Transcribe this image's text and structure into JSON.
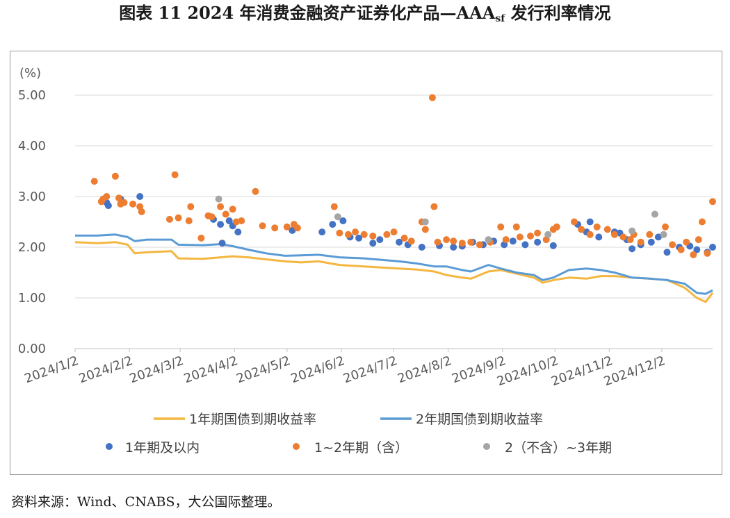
{
  "title": {
    "main": "图表 11  2024 年消费金融资产证券化产品—AAA",
    "subscript": "sf",
    "suffix": " 发行利率情况"
  },
  "source_note": "资料来源：Wind、CNABS，大公国际整理。",
  "colors": {
    "orange": "#ED7D31",
    "blue": "#4472C4",
    "gray": "#A5A5A5",
    "line_1y": "#F4B63F",
    "line_2y": "#5B9BD5",
    "grid": "#D9D9D9"
  },
  "chart_data": {
    "type": "scatter",
    "ylabel": "(%)",
    "ylim": [
      0,
      5.0
    ],
    "yticks": [
      "0.00",
      "1.00",
      "2.00",
      "3.00",
      "4.00",
      "5.00"
    ],
    "xlim": [
      "2024-01-02",
      "2024-12-31"
    ],
    "xticks": [
      "2024/1/2",
      "2024/2/2",
      "2024/3/2",
      "2024/4/2",
      "2024/5/2",
      "2024/6/2",
      "2024/7/2",
      "2024/8/2",
      "2024/9/2",
      "2024/10/2",
      "2024/11/2",
      "2024/12/2"
    ],
    "grid": true,
    "legend_position": "bottom",
    "lines": [
      {
        "name": "1年期国债到期收益率",
        "color": "#F4B63F",
        "points": [
          [
            "2024-01-02",
            2.1
          ],
          [
            "2024-01-15",
            2.08
          ],
          [
            "2024-01-25",
            2.1
          ],
          [
            "2024-02-01",
            2.05
          ],
          [
            "2024-02-05",
            1.88
          ],
          [
            "2024-02-12",
            1.9
          ],
          [
            "2024-02-26",
            1.92
          ],
          [
            "2024-03-01",
            1.78
          ],
          [
            "2024-03-15",
            1.77
          ],
          [
            "2024-03-25",
            1.8
          ],
          [
            "2024-04-01",
            1.82
          ],
          [
            "2024-04-10",
            1.8
          ],
          [
            "2024-04-20",
            1.76
          ],
          [
            "2024-05-01",
            1.72
          ],
          [
            "2024-05-10",
            1.7
          ],
          [
            "2024-05-20",
            1.72
          ],
          [
            "2024-06-01",
            1.65
          ],
          [
            "2024-06-15",
            1.62
          ],
          [
            "2024-06-25",
            1.6
          ],
          [
            "2024-07-05",
            1.58
          ],
          [
            "2024-07-15",
            1.56
          ],
          [
            "2024-07-25",
            1.52
          ],
          [
            "2024-08-01",
            1.45
          ],
          [
            "2024-08-10",
            1.4
          ],
          [
            "2024-08-15",
            1.38
          ],
          [
            "2024-08-25",
            1.52
          ],
          [
            "2024-09-01",
            1.55
          ],
          [
            "2024-09-10",
            1.48
          ],
          [
            "2024-09-20",
            1.4
          ],
          [
            "2024-09-25",
            1.3
          ],
          [
            "2024-10-01",
            1.35
          ],
          [
            "2024-10-10",
            1.4
          ],
          [
            "2024-10-20",
            1.38
          ],
          [
            "2024-10-28",
            1.43
          ],
          [
            "2024-11-05",
            1.43
          ],
          [
            "2024-11-15",
            1.4
          ],
          [
            "2024-11-25",
            1.38
          ],
          [
            "2024-12-05",
            1.35
          ],
          [
            "2024-12-15",
            1.2
          ],
          [
            "2024-12-22",
            1.0
          ],
          [
            "2024-12-27",
            0.92
          ],
          [
            "2024-12-31",
            1.1
          ]
        ]
      },
      {
        "name": "2年期国债到期收益率",
        "color": "#5B9BD5",
        "points": [
          [
            "2024-01-02",
            2.23
          ],
          [
            "2024-01-15",
            2.23
          ],
          [
            "2024-01-25",
            2.25
          ],
          [
            "2024-02-01",
            2.2
          ],
          [
            "2024-02-05",
            2.12
          ],
          [
            "2024-02-12",
            2.15
          ],
          [
            "2024-02-26",
            2.15
          ],
          [
            "2024-03-01",
            2.05
          ],
          [
            "2024-03-15",
            2.04
          ],
          [
            "2024-03-25",
            2.06
          ],
          [
            "2024-04-01",
            2.02
          ],
          [
            "2024-04-10",
            1.95
          ],
          [
            "2024-04-20",
            1.88
          ],
          [
            "2024-05-01",
            1.83
          ],
          [
            "2024-05-10",
            1.84
          ],
          [
            "2024-05-20",
            1.85
          ],
          [
            "2024-06-01",
            1.8
          ],
          [
            "2024-06-15",
            1.78
          ],
          [
            "2024-06-25",
            1.75
          ],
          [
            "2024-07-05",
            1.72
          ],
          [
            "2024-07-15",
            1.68
          ],
          [
            "2024-07-25",
            1.62
          ],
          [
            "2024-08-01",
            1.62
          ],
          [
            "2024-08-10",
            1.55
          ],
          [
            "2024-08-15",
            1.52
          ],
          [
            "2024-08-25",
            1.65
          ],
          [
            "2024-09-01",
            1.58
          ],
          [
            "2024-09-10",
            1.5
          ],
          [
            "2024-09-20",
            1.45
          ],
          [
            "2024-09-25",
            1.35
          ],
          [
            "2024-10-01",
            1.4
          ],
          [
            "2024-10-10",
            1.55
          ],
          [
            "2024-10-20",
            1.58
          ],
          [
            "2024-10-28",
            1.55
          ],
          [
            "2024-11-05",
            1.5
          ],
          [
            "2024-11-15",
            1.4
          ],
          [
            "2024-11-25",
            1.38
          ],
          [
            "2024-12-05",
            1.35
          ],
          [
            "2024-12-15",
            1.28
          ],
          [
            "2024-12-22",
            1.1
          ],
          [
            "2024-12-27",
            1.08
          ],
          [
            "2024-12-31",
            1.15
          ]
        ]
      }
    ],
    "series": [
      {
        "name": "1年期及以内",
        "color": "#4472C4",
        "points": [
          [
            "2024-01-20",
            2.88
          ],
          [
            "2024-01-21",
            2.82
          ],
          [
            "2024-01-28",
            2.95
          ],
          [
            "2024-02-08",
            3.0
          ],
          [
            "2024-03-21",
            2.55
          ],
          [
            "2024-03-25",
            2.45
          ],
          [
            "2024-03-26",
            2.08
          ],
          [
            "2024-03-30",
            2.52
          ],
          [
            "2024-04-01",
            2.42
          ],
          [
            "2024-04-04",
            2.3
          ],
          [
            "2024-05-05",
            2.33
          ],
          [
            "2024-05-22",
            2.3
          ],
          [
            "2024-05-28",
            2.45
          ],
          [
            "2024-06-03",
            2.52
          ],
          [
            "2024-06-07",
            2.2
          ],
          [
            "2024-06-12",
            2.18
          ],
          [
            "2024-06-20",
            2.08
          ],
          [
            "2024-06-24",
            2.15
          ],
          [
            "2024-07-05",
            2.1
          ],
          [
            "2024-07-10",
            2.05
          ],
          [
            "2024-07-18",
            2.0
          ],
          [
            "2024-07-28",
            2.03
          ],
          [
            "2024-08-05",
            2.0
          ],
          [
            "2024-08-10",
            2.02
          ],
          [
            "2024-08-16",
            2.1
          ],
          [
            "2024-08-22",
            2.05
          ],
          [
            "2024-08-28",
            2.12
          ],
          [
            "2024-09-03",
            2.05
          ],
          [
            "2024-09-08",
            2.12
          ],
          [
            "2024-09-15",
            2.05
          ],
          [
            "2024-09-22",
            2.1
          ],
          [
            "2024-10-01",
            2.03
          ],
          [
            "2024-10-15",
            2.45
          ],
          [
            "2024-10-20",
            2.3
          ],
          [
            "2024-10-22",
            2.5
          ],
          [
            "2024-10-27",
            2.2
          ],
          [
            "2024-11-05",
            2.3
          ],
          [
            "2024-11-08",
            2.28
          ],
          [
            "2024-11-12",
            2.15
          ],
          [
            "2024-11-15",
            1.97
          ],
          [
            "2024-11-20",
            2.05
          ],
          [
            "2024-11-26",
            2.1
          ],
          [
            "2024-11-30",
            2.2
          ],
          [
            "2024-12-05",
            1.9
          ],
          [
            "2024-12-12",
            2.0
          ],
          [
            "2024-12-18",
            2.02
          ],
          [
            "2024-12-22",
            1.95
          ],
          [
            "2024-12-28",
            1.9
          ],
          [
            "2024-12-31",
            2.0
          ]
        ]
      },
      {
        "name": "1~2年期（含）",
        "color": "#ED7D31",
        "points": [
          [
            "2024-01-13",
            3.3
          ],
          [
            "2024-01-17",
            2.9
          ],
          [
            "2024-01-18",
            2.95
          ],
          [
            "2024-01-20",
            3.0
          ],
          [
            "2024-01-25",
            3.4
          ],
          [
            "2024-01-27",
            2.97
          ],
          [
            "2024-01-28",
            2.85
          ],
          [
            "2024-01-30",
            2.88
          ],
          [
            "2024-02-04",
            2.85
          ],
          [
            "2024-02-08",
            2.8
          ],
          [
            "2024-02-09",
            2.7
          ],
          [
            "2024-02-25",
            2.55
          ],
          [
            "2024-02-28",
            3.43
          ],
          [
            "2024-03-01",
            2.58
          ],
          [
            "2024-03-07",
            2.52
          ],
          [
            "2024-03-08",
            2.8
          ],
          [
            "2024-03-14",
            2.18
          ],
          [
            "2024-03-18",
            2.62
          ],
          [
            "2024-03-20",
            2.6
          ],
          [
            "2024-03-25",
            2.8
          ],
          [
            "2024-03-28",
            2.65
          ],
          [
            "2024-04-01",
            2.75
          ],
          [
            "2024-04-03",
            2.5
          ],
          [
            "2024-04-06",
            2.52
          ],
          [
            "2024-04-14",
            3.1
          ],
          [
            "2024-04-18",
            2.42
          ],
          [
            "2024-04-25",
            2.38
          ],
          [
            "2024-05-02",
            2.4
          ],
          [
            "2024-05-06",
            2.45
          ],
          [
            "2024-05-08",
            2.38
          ],
          [
            "2024-05-29",
            2.8
          ],
          [
            "2024-06-01",
            2.28
          ],
          [
            "2024-06-06",
            2.25
          ],
          [
            "2024-06-10",
            2.3
          ],
          [
            "2024-06-15",
            2.25
          ],
          [
            "2024-06-20",
            2.22
          ],
          [
            "2024-06-28",
            2.25
          ],
          [
            "2024-07-02",
            2.3
          ],
          [
            "2024-07-08",
            2.18
          ],
          [
            "2024-07-12",
            2.12
          ],
          [
            "2024-07-18",
            2.5
          ],
          [
            "2024-07-20",
            2.35
          ],
          [
            "2024-07-24",
            4.95
          ],
          [
            "2024-07-25",
            2.8
          ],
          [
            "2024-07-27",
            2.1
          ],
          [
            "2024-08-01",
            2.15
          ],
          [
            "2024-08-05",
            2.12
          ],
          [
            "2024-08-10",
            2.08
          ],
          [
            "2024-08-15",
            2.1
          ],
          [
            "2024-08-20",
            2.05
          ],
          [
            "2024-08-26",
            2.1
          ],
          [
            "2024-09-01",
            2.4
          ],
          [
            "2024-09-04",
            2.15
          ],
          [
            "2024-09-10",
            2.4
          ],
          [
            "2024-09-12",
            2.2
          ],
          [
            "2024-09-18",
            2.22
          ],
          [
            "2024-09-22",
            2.28
          ],
          [
            "2024-09-27",
            2.15
          ],
          [
            "2024-10-01",
            2.35
          ],
          [
            "2024-10-03",
            2.4
          ],
          [
            "2024-10-13",
            2.5
          ],
          [
            "2024-10-17",
            2.35
          ],
          [
            "2024-10-22",
            2.25
          ],
          [
            "2024-10-26",
            2.4
          ],
          [
            "2024-11-01",
            2.35
          ],
          [
            "2024-11-05",
            2.25
          ],
          [
            "2024-11-10",
            2.2
          ],
          [
            "2024-11-14",
            2.15
          ],
          [
            "2024-11-16",
            2.25
          ],
          [
            "2024-11-20",
            2.1
          ],
          [
            "2024-11-25",
            2.25
          ],
          [
            "2024-12-04",
            2.4
          ],
          [
            "2024-12-08",
            2.05
          ],
          [
            "2024-12-13",
            1.95
          ],
          [
            "2024-12-16",
            2.1
          ],
          [
            "2024-12-20",
            1.85
          ],
          [
            "2024-12-23",
            2.15
          ],
          [
            "2024-12-25",
            2.5
          ],
          [
            "2024-12-28",
            1.88
          ],
          [
            "2024-12-31",
            2.9
          ]
        ]
      },
      {
        "name": "2（不含）~3年期",
        "color": "#A5A5A5",
        "points": [
          [
            "2024-03-24",
            2.95
          ],
          [
            "2024-05-31",
            2.6
          ],
          [
            "2024-07-20",
            2.5
          ],
          [
            "2024-08-25",
            2.15
          ],
          [
            "2024-09-28",
            2.25
          ],
          [
            "2024-11-15",
            2.32
          ],
          [
            "2024-11-28",
            2.65
          ],
          [
            "2024-12-03",
            2.25
          ]
        ]
      }
    ]
  }
}
